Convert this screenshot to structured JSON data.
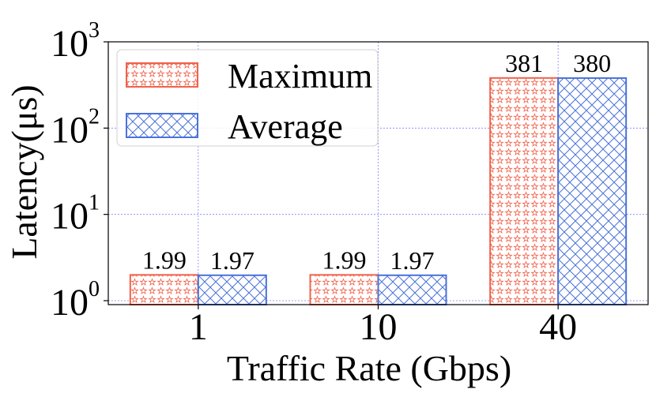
{
  "chart_data": {
    "type": "bar",
    "scale": "log",
    "categories": [
      "1",
      "10",
      "40"
    ],
    "series": [
      {
        "name": "Maximum",
        "values": [
          1.99,
          1.99,
          381
        ],
        "labels": [
          "1.99",
          "1.99",
          "381"
        ],
        "color": "#f0624a",
        "pattern": "stars"
      },
      {
        "name": "Average",
        "values": [
          1.97,
          1.97,
          380
        ],
        "labels": [
          "1.97",
          "1.97",
          "380"
        ],
        "color": "#4a72d9",
        "pattern": "crosshatch"
      }
    ],
    "xlabel": "Traffic Rate (Gbps)",
    "ylabel": "Latency(μs)",
    "ylim": [
      0.9,
      1000
    ],
    "yticks": [
      {
        "value": 1,
        "base": "10",
        "exp": "0"
      },
      {
        "value": 10,
        "base": "10",
        "exp": "1"
      },
      {
        "value": 100,
        "base": "10",
        "exp": "2"
      },
      {
        "value": 1000,
        "base": "10",
        "exp": "3"
      }
    ],
    "grid": true,
    "legend_position": "top-left"
  }
}
